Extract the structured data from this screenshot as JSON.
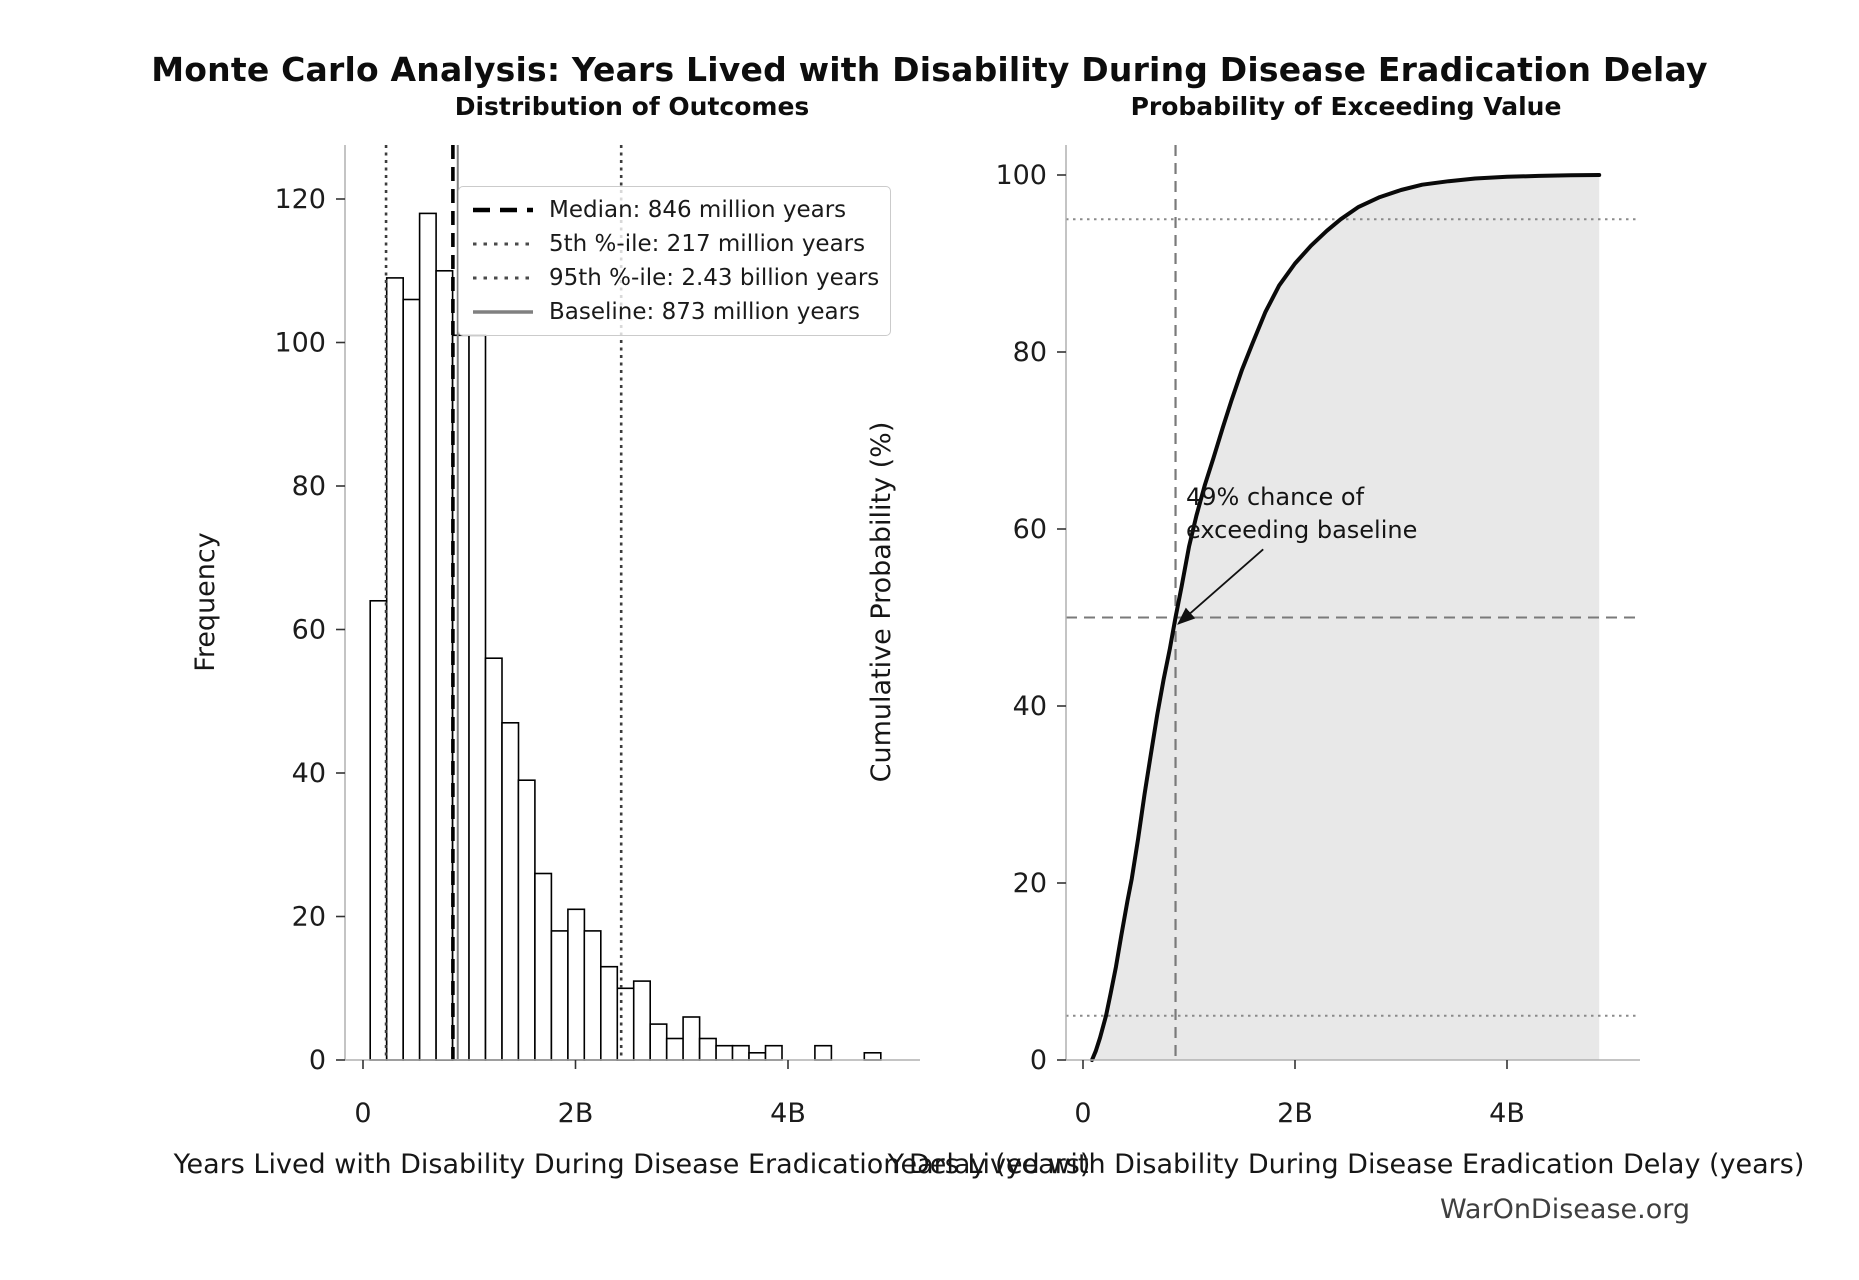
{
  "figure": {
    "title": "Monte Carlo Analysis: Years Lived with Disability During Disease Eradication Delay",
    "watermark": "WarOnDisease.org"
  },
  "chart_data": [
    {
      "type": "bar",
      "title": "Distribution of Outcomes",
      "xlabel": "Years Lived with Disability During Disease Eradication Delay (years)",
      "ylabel": "Frequency",
      "x_unit": "billion years",
      "bin_start": 0.068,
      "bin_width": 0.155,
      "counts": [
        64,
        109,
        106,
        118,
        110,
        101,
        101,
        56,
        47,
        39,
        26,
        18,
        21,
        18,
        13,
        10,
        11,
        5,
        3,
        6,
        3,
        2,
        2,
        1,
        2,
        0,
        0,
        2,
        0,
        0,
        1
      ],
      "xlim": [
        -0.17,
        5.25
      ],
      "ylim": [
        0,
        127
      ],
      "grid": false,
      "xticks": [
        {
          "v": 0,
          "label": "0"
        },
        {
          "v": 2,
          "label": "2B"
        },
        {
          "v": 4,
          "label": "4B"
        }
      ],
      "yticks": [
        {
          "v": 0,
          "label": "0"
        },
        {
          "v": 20,
          "label": "20"
        },
        {
          "v": 40,
          "label": "40"
        },
        {
          "v": 60,
          "label": "60"
        },
        {
          "v": 80,
          "label": "80"
        },
        {
          "v": 100,
          "label": "100"
        },
        {
          "v": 120,
          "label": "120"
        }
      ],
      "markers": {
        "median_b": 0.846,
        "p5_b": 0.217,
        "p95_b": 2.43,
        "baseline_b": 0.873
      },
      "legend_position": "upper right",
      "legend": {
        "items": [
          {
            "label": "Median: 846 million years"
          },
          {
            "label": "5th %-ile: 217 million years"
          },
          {
            "label": "95th %-ile: 2.43 billion years"
          },
          {
            "label": "Baseline: 873 million years"
          }
        ]
      }
    },
    {
      "type": "line",
      "title": "Probability of Exceeding Value",
      "xlabel": "Years Lived with Disability During Disease Eradication Delay (years)",
      "ylabel": "Cumulative Probability (%)",
      "x_unit": "billion years",
      "xlim": [
        -0.16,
        5.2
      ],
      "ylim": [
        0,
        103
      ],
      "grid": false,
      "fill_under_curve": true,
      "points": [
        [
          0.085,
          0
        ],
        [
          0.12,
          1
        ],
        [
          0.16,
          2.5
        ],
        [
          0.217,
          5
        ],
        [
          0.26,
          7.5
        ],
        [
          0.31,
          10.5
        ],
        [
          0.36,
          14
        ],
        [
          0.42,
          18
        ],
        [
          0.46,
          20.5
        ],
        [
          0.52,
          25
        ],
        [
          0.58,
          30
        ],
        [
          0.64,
          34.5
        ],
        [
          0.7,
          39
        ],
        [
          0.76,
          43
        ],
        [
          0.82,
          46.5
        ],
        [
          0.873,
          50
        ],
        [
          0.93,
          53.5
        ],
        [
          1.0,
          58
        ],
        [
          1.07,
          61.5
        ],
        [
          1.15,
          65
        ],
        [
          1.23,
          68
        ],
        [
          1.32,
          71.5
        ],
        [
          1.4,
          74.5
        ],
        [
          1.5,
          78
        ],
        [
          1.6,
          81
        ],
        [
          1.72,
          84.5
        ],
        [
          1.85,
          87.5
        ],
        [
          2.0,
          90
        ],
        [
          2.15,
          92
        ],
        [
          2.3,
          93.7
        ],
        [
          2.43,
          95
        ],
        [
          2.6,
          96.4
        ],
        [
          2.8,
          97.5
        ],
        [
          3.0,
          98.3
        ],
        [
          3.2,
          98.9
        ],
        [
          3.45,
          99.3
        ],
        [
          3.7,
          99.6
        ],
        [
          4.0,
          99.8
        ],
        [
          4.3,
          99.9
        ],
        [
          4.6,
          99.97
        ],
        [
          4.87,
          100
        ]
      ],
      "xticks": [
        {
          "v": 0,
          "label": "0"
        },
        {
          "v": 2,
          "label": "2B"
        },
        {
          "v": 4,
          "label": "4B"
        }
      ],
      "yticks": [
        {
          "v": 0,
          "label": "0"
        },
        {
          "v": 20,
          "label": "20"
        },
        {
          "v": 40,
          "label": "40"
        },
        {
          "v": 60,
          "label": "60"
        },
        {
          "v": 80,
          "label": "80"
        },
        {
          "v": 100,
          "label": "100"
        }
      ],
      "hlines": {
        "p50_pct": 50,
        "p95_pct": 95,
        "p5_pct": 5
      },
      "vline_baseline_b": 0.873,
      "annotation": {
        "line1": "49% chance of",
        "line2": "exceeding baseline",
        "arrow_from": [
          1.7,
          57.7
        ],
        "arrow_to": [
          0.9,
          49.3
        ]
      }
    }
  ],
  "colors": {
    "bar_fill": "#ffffff",
    "bar_edge": "#000000",
    "curve": "#0a0a0a",
    "fill_area": "#e8e8e8",
    "median_line": "#000000",
    "percentile_dotted": "#3d3d3d",
    "baseline_line": "#808080",
    "crosshair_gray": "#7a7a7a",
    "dotted_gray": "#8a8a8a",
    "spine": "#b0b0b0",
    "tick": "#333333",
    "text": "#1c1c1c"
  }
}
